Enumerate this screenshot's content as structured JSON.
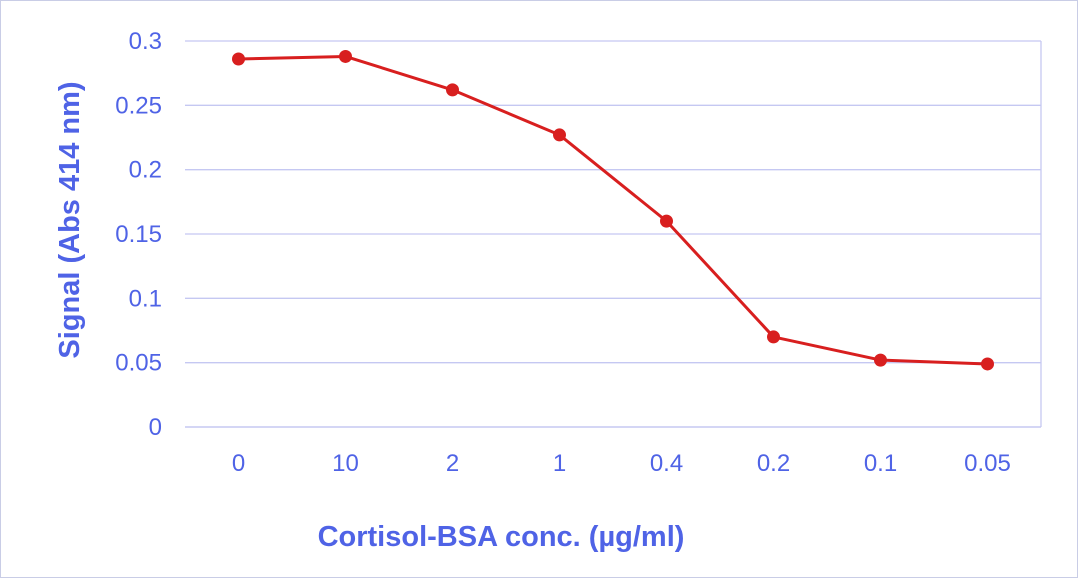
{
  "chart_data": {
    "type": "line",
    "title": "",
    "xlabel": "Cortisol-BSA conc. (µg/ml)",
    "ylabel": "Signal (Abs 414 nm)",
    "categories": [
      "0",
      "10",
      "2",
      "1",
      "0.4",
      "0.2",
      "0.1",
      "0.05"
    ],
    "series": [
      {
        "values": [
          0.286,
          0.288,
          0.262,
          0.227,
          0.16,
          0.07,
          0.052,
          0.049
        ]
      }
    ],
    "ylim": [
      0,
      0.3
    ],
    "yticks": [
      0,
      0.05,
      0.1,
      0.15,
      0.2,
      0.25,
      0.3
    ],
    "ytick_labels": [
      "0",
      "0.05",
      "0.1",
      "0.15",
      "0.2",
      "0.25",
      "0.3"
    ],
    "grid": true,
    "legend": "none"
  },
  "colors": {
    "line": "#d81f1f",
    "marker": "#d81f1f",
    "axis_text": "#4f63e6",
    "grid": "#c5c8f2"
  }
}
